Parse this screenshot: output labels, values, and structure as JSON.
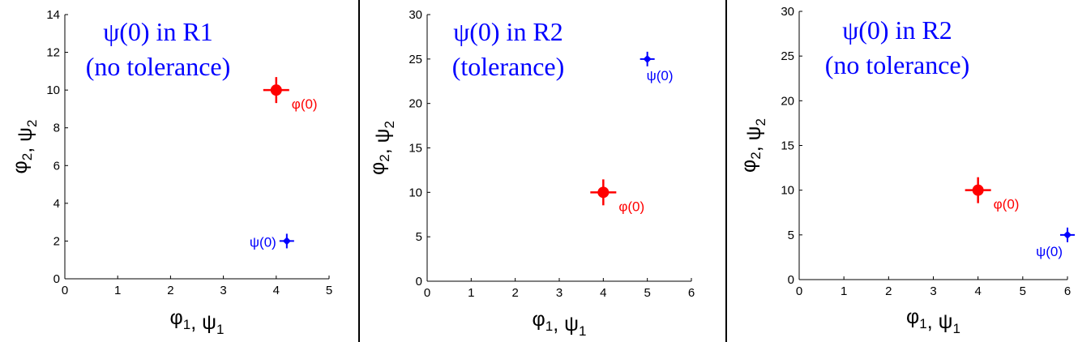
{
  "colors": {
    "phi": "#ff0000",
    "psi": "#0000ff",
    "axis": "#000000"
  },
  "chart_data": [
    {
      "type": "scatter",
      "title_lines": [
        "ψ(0) in R1",
        "(no tolerance)"
      ],
      "xlabel": {
        "a": "φ",
        "a_sub": "1",
        "sep": ",  ",
        "b": "ψ",
        "b_sub": "1"
      },
      "ylabel": {
        "a": "φ",
        "a_sub": "2",
        "sep": ",  ",
        "b": "ψ",
        "b_sub": "2"
      },
      "xlim": [
        0,
        5
      ],
      "ylim": [
        0,
        14
      ],
      "xticks": [
        0,
        1,
        2,
        3,
        4,
        5
      ],
      "yticks": [
        0,
        2,
        4,
        6,
        8,
        10,
        12,
        14
      ],
      "grid": false,
      "series": [
        {
          "label": "φ(0)",
          "x": 4,
          "y": 10,
          "color": "#ff0000",
          "marker": "circle-plus",
          "label_side": "right"
        },
        {
          "label": "ψ(0)",
          "x": 4.2,
          "y": 2,
          "color": "#0000ff",
          "marker": "diamond-plus",
          "label_side": "left"
        }
      ]
    },
    {
      "type": "scatter",
      "title_lines": [
        "ψ(0) in R2",
        "(tolerance)"
      ],
      "xlabel": {
        "a": "φ",
        "a_sub": "1",
        "sep": ",  ",
        "b": "ψ",
        "b_sub": "1"
      },
      "ylabel": {
        "a": "φ",
        "a_sub": "2",
        "sep": ",  ",
        "b": "ψ",
        "b_sub": "2"
      },
      "xlim": [
        0,
        6
      ],
      "ylim": [
        0,
        30
      ],
      "xticks": [
        0,
        1,
        2,
        3,
        4,
        5,
        6
      ],
      "yticks": [
        0,
        5,
        10,
        15,
        20,
        25,
        30
      ],
      "grid": false,
      "series": [
        {
          "label": "φ(0)",
          "x": 4,
          "y": 10,
          "color": "#ff0000",
          "marker": "circle-plus",
          "label_side": "right"
        },
        {
          "label": "ψ(0)",
          "x": 5,
          "y": 25,
          "color": "#0000ff",
          "marker": "diamond-plus",
          "label_side": "below"
        }
      ]
    },
    {
      "type": "scatter",
      "title_lines": [
        "ψ(0) in R2",
        "(no tolerance)"
      ],
      "xlabel": {
        "a": "φ",
        "a_sub": "1",
        "sep": ",  ",
        "b": "ψ",
        "b_sub": "1"
      },
      "ylabel": {
        "a": "φ",
        "a_sub": "2",
        "sep": ",  ",
        "b": "ψ",
        "b_sub": "2"
      },
      "xlim": [
        0,
        6
      ],
      "ylim": [
        0,
        30
      ],
      "xticks": [
        0,
        1,
        2,
        3,
        4,
        5,
        6
      ],
      "yticks": [
        0,
        5,
        10,
        15,
        20,
        25,
        30
      ],
      "grid": false,
      "series": [
        {
          "label": "φ(0)",
          "x": 4,
          "y": 10,
          "color": "#ff0000",
          "marker": "circle-plus",
          "label_side": "right"
        },
        {
          "label": "ψ(0)",
          "x": 6,
          "y": 5,
          "color": "#0000ff",
          "marker": "diamond-plus",
          "label_side": "below-left"
        }
      ]
    }
  ]
}
